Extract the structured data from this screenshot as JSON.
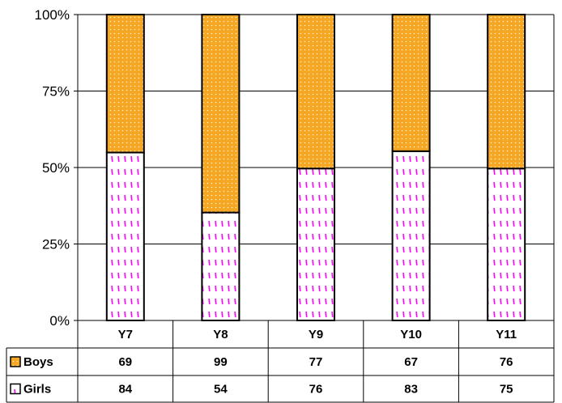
{
  "chart_data": {
    "type": "bar",
    "stacked": "percent",
    "categories": [
      "Y7",
      "Y8",
      "Y9",
      "Y10",
      "Y11"
    ],
    "series": [
      {
        "name": "Boys",
        "values": [
          69,
          99,
          77,
          67,
          76
        ],
        "color": "#f5a623",
        "pattern": "dotted-orange"
      },
      {
        "name": "Girls",
        "values": [
          84,
          54,
          76,
          83,
          75
        ],
        "color": "#ff00ff",
        "pattern": "dashed-magenta"
      }
    ],
    "y_ticks": [
      "0%",
      "25%",
      "50%",
      "75%",
      "100%"
    ],
    "ylim": [
      0,
      100
    ],
    "grid": true,
    "legend": "data-table-left"
  }
}
